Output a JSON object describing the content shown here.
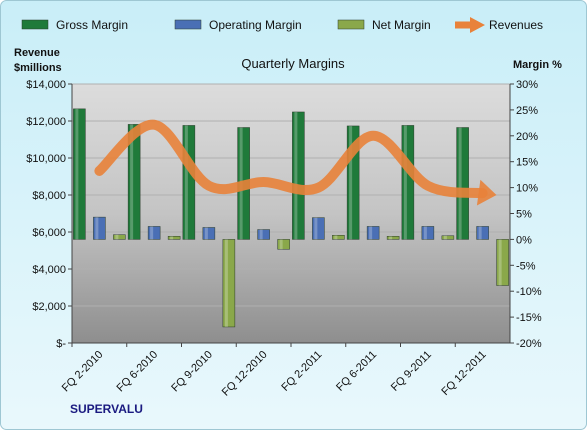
{
  "chart_data": {
    "type": "bar",
    "title": "Quarterly Margins",
    "left_axis_label": [
      "Revenue",
      "$millions"
    ],
    "right_axis_label": "Margin %",
    "company": "SUPERVALU",
    "categories": [
      "FQ 2-2010",
      "FQ 6-2010",
      "FQ 9-2010",
      "FQ 12-2010",
      "FQ 2-2011",
      "FQ 6-2011",
      "FQ 9-2011",
      "FQ 12-2011"
    ],
    "left_axis": {
      "min": 0,
      "max": 14000,
      "ticks": [
        "$-",
        "$2,000",
        "$4,000",
        "$6,000",
        "$8,000",
        "$10,000",
        "$12,000",
        "$14,000"
      ]
    },
    "right_axis": {
      "min": -20,
      "max": 30,
      "ticks": [
        "-20%",
        "-15%",
        "-10%",
        "-5%",
        "0%",
        "5%",
        "10%",
        "15%",
        "20%",
        "25%",
        "30%"
      ]
    },
    "series": [
      {
        "name": "Gross Margin",
        "axis": "right",
        "kind": "bar",
        "color": "#1f7a3a",
        "values": [
          25.2,
          22.2,
          22.0,
          21.6,
          24.6,
          21.9,
          22.0,
          21.6
        ]
      },
      {
        "name": "Operating Margin",
        "axis": "right",
        "kind": "bar",
        "color": "#4a6fb5",
        "values": [
          4.3,
          2.5,
          2.3,
          1.9,
          4.2,
          2.5,
          2.5,
          2.5
        ]
      },
      {
        "name": "Net Margin",
        "axis": "right",
        "kind": "bar",
        "color": "#8aa84a",
        "values": [
          0.9,
          0.6,
          -16.9,
          -1.9,
          0.8,
          0.6,
          0.7,
          -8.9
        ]
      },
      {
        "name": "Revenues",
        "axis": "left",
        "kind": "line",
        "color": "#e8823a",
        "values": [
          9300,
          11800,
          8500,
          8700,
          8400,
          11200,
          8500,
          8100
        ]
      }
    ],
    "legend_position": "top",
    "grid": true
  }
}
